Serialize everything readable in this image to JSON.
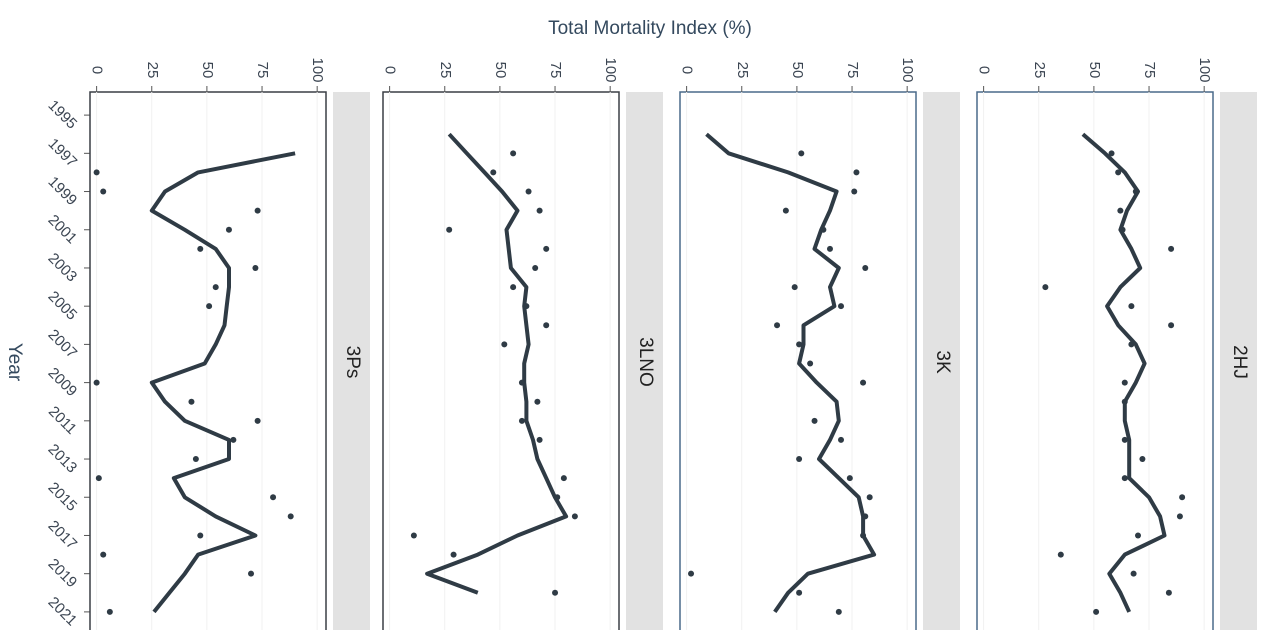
{
  "chart_data": {
    "type": "line",
    "title": "Total Mortality Index (%)",
    "y_label": "Year",
    "xlim": [
      -3,
      104
    ],
    "xticks": [
      0,
      25,
      50,
      75,
      100
    ],
    "yearlim": [
      1994,
      2022
    ],
    "yearticks": [
      1995,
      1997,
      1999,
      2001,
      2003,
      2005,
      2007,
      2009,
      2011,
      2013,
      2015,
      2017,
      2019,
      2021
    ],
    "years": [
      1996,
      1997,
      1998,
      1999,
      2000,
      2001,
      2002,
      2003,
      2004,
      2005,
      2006,
      2007,
      2008,
      2009,
      2010,
      2011,
      2012,
      2013,
      2014,
      2015,
      2016,
      2017,
      2018,
      2019,
      2020,
      2021
    ],
    "color": "#2f3b45",
    "grid": true,
    "panels": [
      {
        "name": "3Ps",
        "line": [
          null,
          90,
          46,
          31,
          25,
          40,
          54,
          60,
          60,
          59,
          58,
          54,
          49,
          25,
          31,
          40,
          60,
          60,
          35,
          40,
          54,
          72,
          46,
          40,
          33,
          26
        ],
        "points": [
          null,
          null,
          0,
          3,
          73,
          60,
          47,
          72,
          54,
          51,
          null,
          null,
          null,
          0,
          43,
          73,
          62,
          45,
          1,
          80,
          88,
          47,
          3,
          70,
          null,
          6
        ]
      },
      {
        "name": "3LNO",
        "line": [
          27,
          35,
          43,
          51,
          58,
          53,
          54,
          55,
          62,
          61,
          62,
          63,
          61,
          61,
          62,
          62,
          65,
          67,
          71,
          75,
          80,
          58,
          40,
          17,
          40,
          null
        ],
        "points": [
          null,
          56,
          47,
          63,
          68,
          27,
          71,
          66,
          56,
          62,
          71,
          52,
          null,
          60,
          67,
          60,
          68,
          null,
          79,
          76,
          84,
          11,
          29,
          null,
          75,
          null
        ]
      },
      {
        "name": "3K",
        "line": [
          9,
          19,
          46,
          68,
          65,
          61,
          58,
          69,
          65,
          67,
          53,
          53,
          51,
          59,
          68,
          69,
          65,
          60,
          69,
          78,
          80,
          80,
          85,
          55,
          46,
          40
        ],
        "points": [
          null,
          52,
          77,
          76,
          45,
          62,
          65,
          81,
          49,
          70,
          41,
          51,
          56,
          80,
          null,
          58,
          70,
          51,
          74,
          83,
          81,
          80,
          null,
          2,
          51,
          69
        ]
      },
      {
        "name": "2HJ",
        "line": [
          45,
          55,
          64,
          70,
          65,
          62,
          67,
          71,
          62,
          56,
          61,
          69,
          73,
          69,
          64,
          64,
          66,
          66,
          66,
          75,
          80,
          82,
          64,
          57,
          62,
          66
        ],
        "points": [
          null,
          58,
          61,
          69,
          62,
          63,
          85,
          null,
          28,
          67,
          85,
          67,
          null,
          64,
          64,
          null,
          64,
          72,
          64,
          90,
          89,
          70,
          35,
          68,
          84,
          51
        ]
      }
    ]
  }
}
